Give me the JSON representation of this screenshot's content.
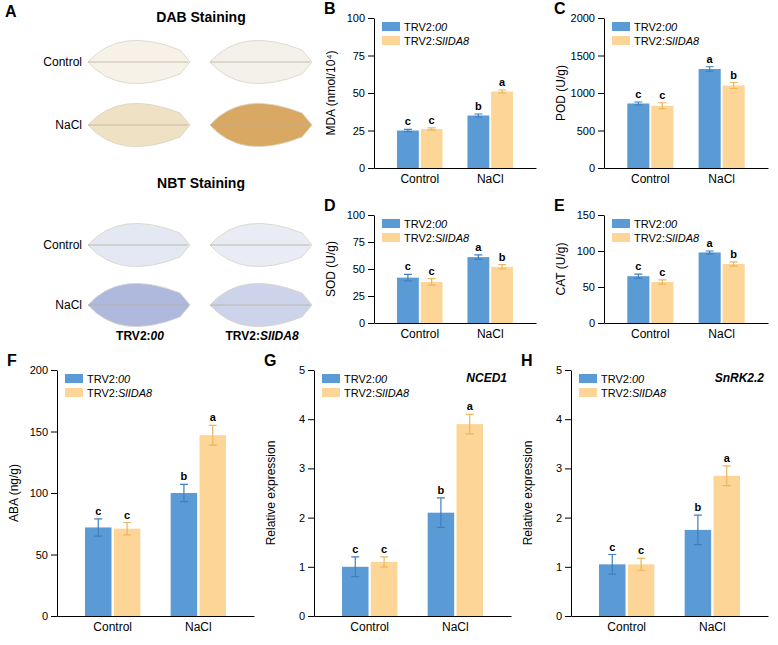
{
  "figure_a": {
    "panel": "A",
    "sections": [
      {
        "title": "DAB Staining",
        "rows": [
          "Control",
          "NaCl"
        ]
      },
      {
        "title": "NBT Staining",
        "rows": [
          "Control",
          "NaCl"
        ]
      }
    ],
    "columns": [
      "TRV2:00",
      "TRV2:SlIDA8"
    ]
  },
  "chart_data": [
    {
      "type": "bar",
      "panel": "B",
      "y_label": "MDA (nmol/10⁴)",
      "categories": [
        "Control",
        "NaCl"
      ],
      "series": [
        {
          "name": "TRV2:00",
          "color": "#5B9BD5",
          "values": [
            25,
            35
          ],
          "errors": [
            0.8,
            1
          ],
          "letters": [
            "c",
            "b"
          ]
        },
        {
          "name": "TRV2:SlIDA8",
          "color": "#FDD597",
          "values": [
            26,
            51
          ],
          "errors": [
            0.8,
            1
          ],
          "letters": [
            "c",
            "a"
          ]
        }
      ],
      "ylim": [
        0,
        100
      ],
      "yticks": [
        0,
        25,
        50,
        75,
        100
      ],
      "legend": "upper left"
    },
    {
      "type": "bar",
      "panel": "C",
      "y_label": "POD (U/g)",
      "categories": [
        "Control",
        "NaCl"
      ],
      "series": [
        {
          "name": "TRV2:00",
          "color": "#5B9BD5",
          "values": [
            860,
            1320
          ],
          "errors": [
            20,
            30
          ],
          "letters": [
            "c",
            "a"
          ]
        },
        {
          "name": "TRV2:SlIDA8",
          "color": "#FDD597",
          "values": [
            830,
            1100
          ],
          "errors": [
            40,
            40
          ],
          "letters": [
            "c",
            "b"
          ]
        }
      ],
      "ylim": [
        0,
        2000
      ],
      "yticks": [
        0,
        500,
        1000,
        1500,
        2000
      ],
      "legend": "upper left"
    },
    {
      "type": "bar",
      "panel": "D",
      "y_label": "SOD (U/g)",
      "categories": [
        "Control",
        "NaCl"
      ],
      "series": [
        {
          "name": "TRV2:00",
          "color": "#5B9BD5",
          "values": [
            42,
            61
          ],
          "errors": [
            3,
            2
          ],
          "letters": [
            "c",
            "a"
          ]
        },
        {
          "name": "TRV2:SlIDA8",
          "color": "#FDD597",
          "values": [
            38,
            52
          ],
          "errors": [
            3,
            2
          ],
          "letters": [
            "c",
            "b"
          ]
        }
      ],
      "ylim": [
        0,
        100
      ],
      "yticks": [
        0,
        25,
        50,
        75,
        100
      ],
      "legend": "upper left"
    },
    {
      "type": "bar",
      "panel": "E",
      "y_label": "CAT (U/g)",
      "categories": [
        "Control",
        "NaCl"
      ],
      "series": [
        {
          "name": "TRV2:00",
          "color": "#5B9BD5",
          "values": [
            65,
            98
          ],
          "errors": [
            3,
            2
          ],
          "letters": [
            "c",
            "a"
          ]
        },
        {
          "name": "TRV2:SlIDA8",
          "color": "#FDD597",
          "values": [
            57,
            82
          ],
          "errors": [
            3,
            3
          ],
          "letters": [
            "c",
            "b"
          ]
        }
      ],
      "ylim": [
        0,
        150
      ],
      "yticks": [
        0,
        50,
        100,
        150
      ],
      "legend": "upper left"
    },
    {
      "type": "bar",
      "panel": "F",
      "y_label": "ABA (ng/g)",
      "categories": [
        "Control",
        "NaCl"
      ],
      "series": [
        {
          "name": "TRV2:00",
          "color": "#5B9BD5",
          "values": [
            72,
            100
          ],
          "errors": [
            7,
            7
          ],
          "letters": [
            "c",
            "b"
          ]
        },
        {
          "name": "TRV2:SlIDA8",
          "color": "#FDD597",
          "values": [
            71,
            147
          ],
          "errors": [
            5,
            8
          ],
          "letters": [
            "c",
            "a"
          ]
        }
      ],
      "ylim": [
        0,
        200
      ],
      "yticks": [
        0,
        50,
        100,
        150,
        200
      ],
      "legend": "upper left"
    },
    {
      "type": "bar",
      "panel": "G",
      "title": "NCED1",
      "y_label": "Relative expression",
      "categories": [
        "Control",
        "NaCl"
      ],
      "series": [
        {
          "name": "TRV2:00",
          "color": "#5B9BD5",
          "values": [
            1.0,
            2.1
          ],
          "errors": [
            0.2,
            0.3
          ],
          "letters": [
            "c",
            "b"
          ]
        },
        {
          "name": "TRV2:SlIDA8",
          "color": "#FDD597",
          "values": [
            1.1,
            3.9
          ],
          "errors": [
            0.1,
            0.2
          ],
          "letters": [
            "c",
            "a"
          ]
        }
      ],
      "ylim": [
        0,
        5
      ],
      "yticks": [
        0,
        1,
        2,
        3,
        4,
        5
      ],
      "legend": "upper left"
    },
    {
      "type": "bar",
      "panel": "H",
      "title": "SnRK2.2",
      "y_label": "Relative expression",
      "categories": [
        "Control",
        "NaCl"
      ],
      "series": [
        {
          "name": "TRV2:00",
          "color": "#5B9BD5",
          "values": [
            1.05,
            1.75
          ],
          "errors": [
            0.2,
            0.3
          ],
          "letters": [
            "c",
            "b"
          ]
        },
        {
          "name": "TRV2:SlIDA8",
          "color": "#FDD597",
          "values": [
            1.05,
            2.85
          ],
          "errors": [
            0.12,
            0.2
          ],
          "letters": [
            "c",
            "a"
          ]
        }
      ],
      "ylim": [
        0,
        5
      ],
      "yticks": [
        0,
        1,
        2,
        3,
        4,
        5
      ],
      "legend": "upper left"
    }
  ]
}
